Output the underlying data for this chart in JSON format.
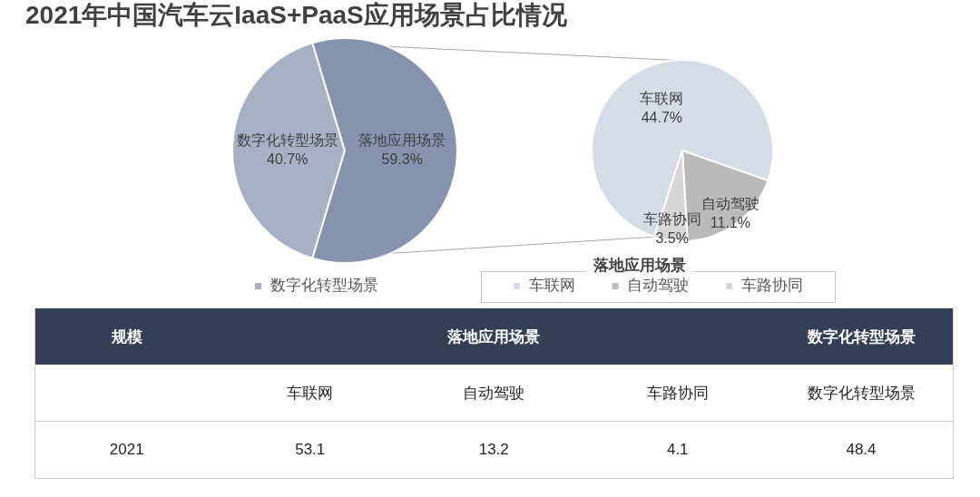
{
  "chart_data": [
    {
      "type": "pie",
      "title": "2021年中国汽车云IaaS+PaaS应用场景占比情况",
      "categories": [
        "数字化转型场景",
        "落地应用场景"
      ],
      "values": [
        40.7,
        59.3
      ],
      "colors": [
        "#a7b1c6",
        "#8593ae"
      ],
      "value_labels": [
        "40.7%",
        "59.3%"
      ],
      "legend": "bottom"
    },
    {
      "type": "pie",
      "categories": [
        "车联网",
        "自动驾驶",
        "车路协同"
      ],
      "values": [
        44.7,
        11.1,
        3.5
      ],
      "colors": [
        "#d6dce7",
        "#bababa",
        "#d7d7d7"
      ],
      "value_labels": [
        "44.7%",
        "11.1%",
        "3.5%"
      ],
      "legend": "bottom",
      "legend_title": "落地应用场景"
    },
    {
      "type": "other",
      "ylabel": "规模",
      "categories": [
        "车联网",
        "自动驾驶",
        "车路协同",
        "数字化转型场景"
      ],
      "y_categories": [
        "2021"
      ],
      "series": [
        {
          "name": "落地应用场景",
          "values": [
            53.1,
            13.2,
            4.1,
            null
          ]
        },
        {
          "name": "数字化转型场景",
          "values": [
            null,
            null,
            null,
            48.4
          ]
        }
      ],
      "data_labels": true
    }
  ]
}
